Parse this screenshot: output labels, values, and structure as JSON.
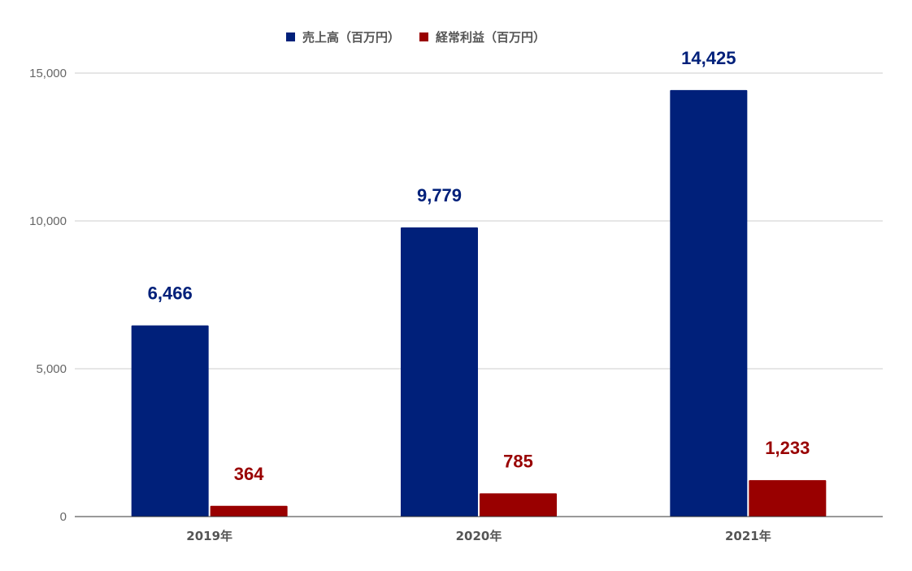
{
  "chart_data": {
    "type": "bar",
    "title": "",
    "xlabel": "",
    "ylabel": "",
    "categories": [
      "2019年",
      "2020年",
      "2021年"
    ],
    "series": [
      {
        "name": "売上高（百万円）",
        "color": "#00207A",
        "values": [
          6466,
          9779,
          14425
        ],
        "value_labels": [
          "6,466",
          "9,779",
          "14,425"
        ]
      },
      {
        "name": "経常利益（百万円）",
        "color": "#990000",
        "values": [
          364,
          785,
          1233
        ],
        "value_labels": [
          "364",
          "785",
          "1,233"
        ]
      }
    ],
    "ylim": [
      0,
      15000
    ],
    "yticks": [
      0,
      5000,
      10000,
      15000
    ],
    "ytick_labels": [
      "0",
      "5,000",
      "10,000",
      "15,000"
    ],
    "grid": true,
    "legend_position": "top-center"
  }
}
